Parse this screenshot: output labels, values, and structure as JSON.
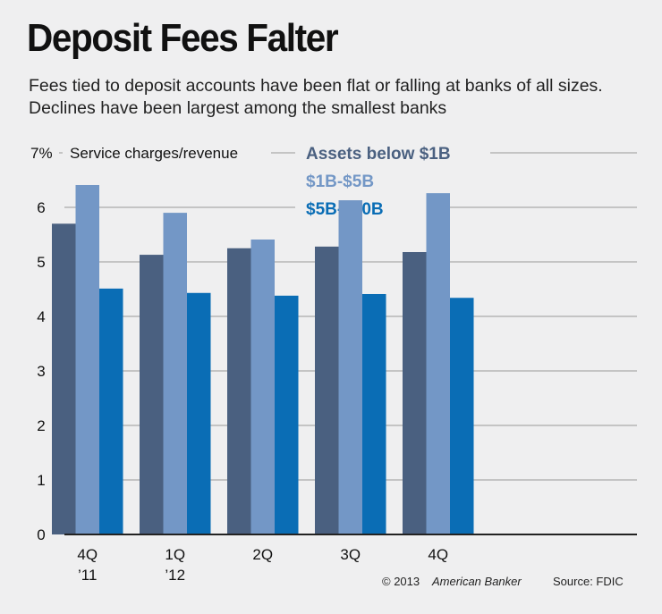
{
  "chart_data": {
    "type": "bar",
    "title": "Deposit Fees Falter",
    "subtitle": "Fees tied to deposit accounts have been flat or falling at banks of all sizes. Declines have been largest among the smallest banks",
    "ylabel": "Service charges/revenue",
    "y_top_label": "7%",
    "ylim": [
      0,
      7
    ],
    "yticks": [
      "0",
      "1",
      "2",
      "3",
      "4",
      "5",
      "6"
    ],
    "grid": true,
    "legend_position": "top-center",
    "categories": [
      [
        "4Q",
        "’11"
      ],
      [
        "1Q",
        "’12"
      ],
      [
        "2Q",
        ""
      ],
      [
        "3Q",
        ""
      ],
      [
        "4Q",
        ""
      ]
    ],
    "series": [
      {
        "name": "Assets below $1B",
        "color": "#4a6080",
        "values": [
          5.7,
          5.13,
          5.25,
          5.28,
          5.18
        ]
      },
      {
        "name": "$1B-$5B",
        "color": "#7397c6",
        "values": [
          6.41,
          5.9,
          5.41,
          6.13,
          6.26
        ]
      },
      {
        "name": "$5B-$20B",
        "color": "#0a6db5",
        "values": [
          4.51,
          4.43,
          4.38,
          4.41,
          4.34
        ]
      }
    ],
    "credit": "© 2013",
    "credit_brand": "American Banker",
    "source": "Source: FDIC"
  }
}
